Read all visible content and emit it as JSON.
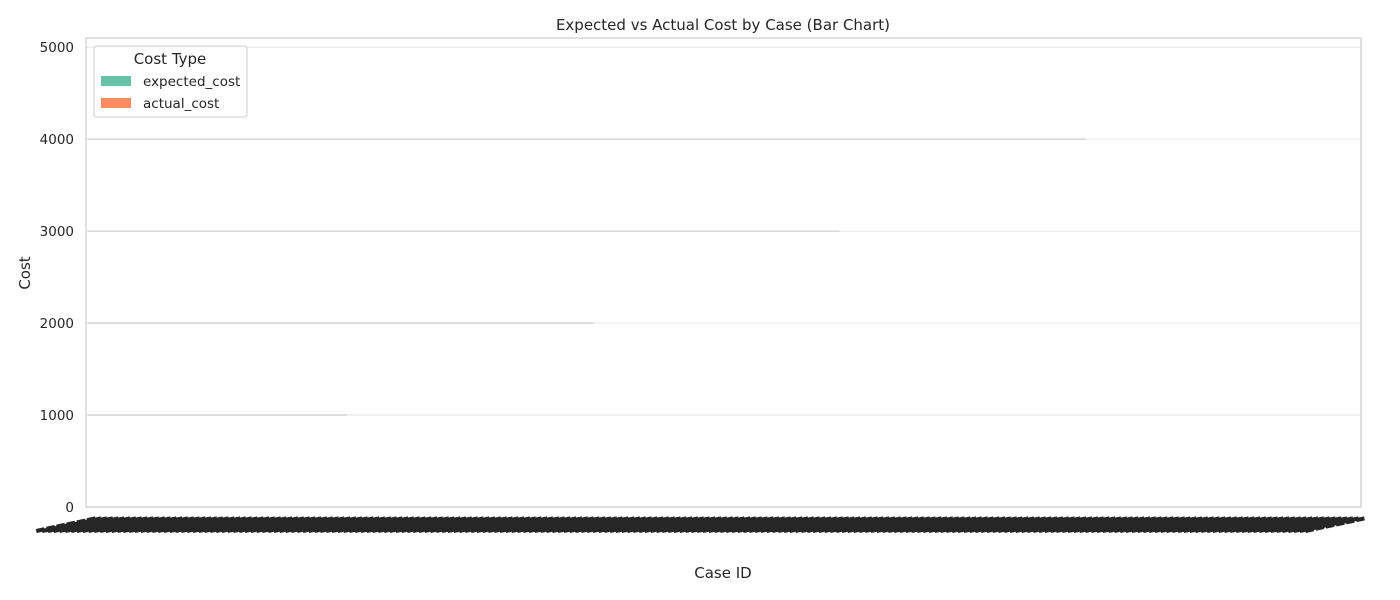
{
  "chart_data": {
    "type": "bar",
    "title": "Expected vs Actual Cost by Case (Bar Chart)",
    "xlabel": "Case ID",
    "ylabel": "Cost",
    "ylim": [
      0,
      5100
    ],
    "yticks": [
      0,
      1000,
      2000,
      3000,
      4000,
      5000
    ],
    "grid": true,
    "legend": {
      "title": "Cost Type",
      "placement": "top-left",
      "entries": [
        {
          "name": "expected_cost",
          "color": "#66c2a5"
        },
        {
          "name": "actual_cost",
          "color": "#fc8d62"
        }
      ]
    },
    "categories_note_count": 220,
    "series": [
      {
        "name": "expected_cost",
        "color": "#66c2a5"
      },
      {
        "name": "actual_cost",
        "color": "#fc8d62"
      }
    ],
    "reference_levels": [
      {
        "value": 1000,
        "x_fraction_end": 0.205
      },
      {
        "value": 2000,
        "x_fraction_end": 0.398
      },
      {
        "value": 3000,
        "x_fraction_end": 0.591
      },
      {
        "value": 4000,
        "x_fraction_end": 0.784
      }
    ]
  }
}
